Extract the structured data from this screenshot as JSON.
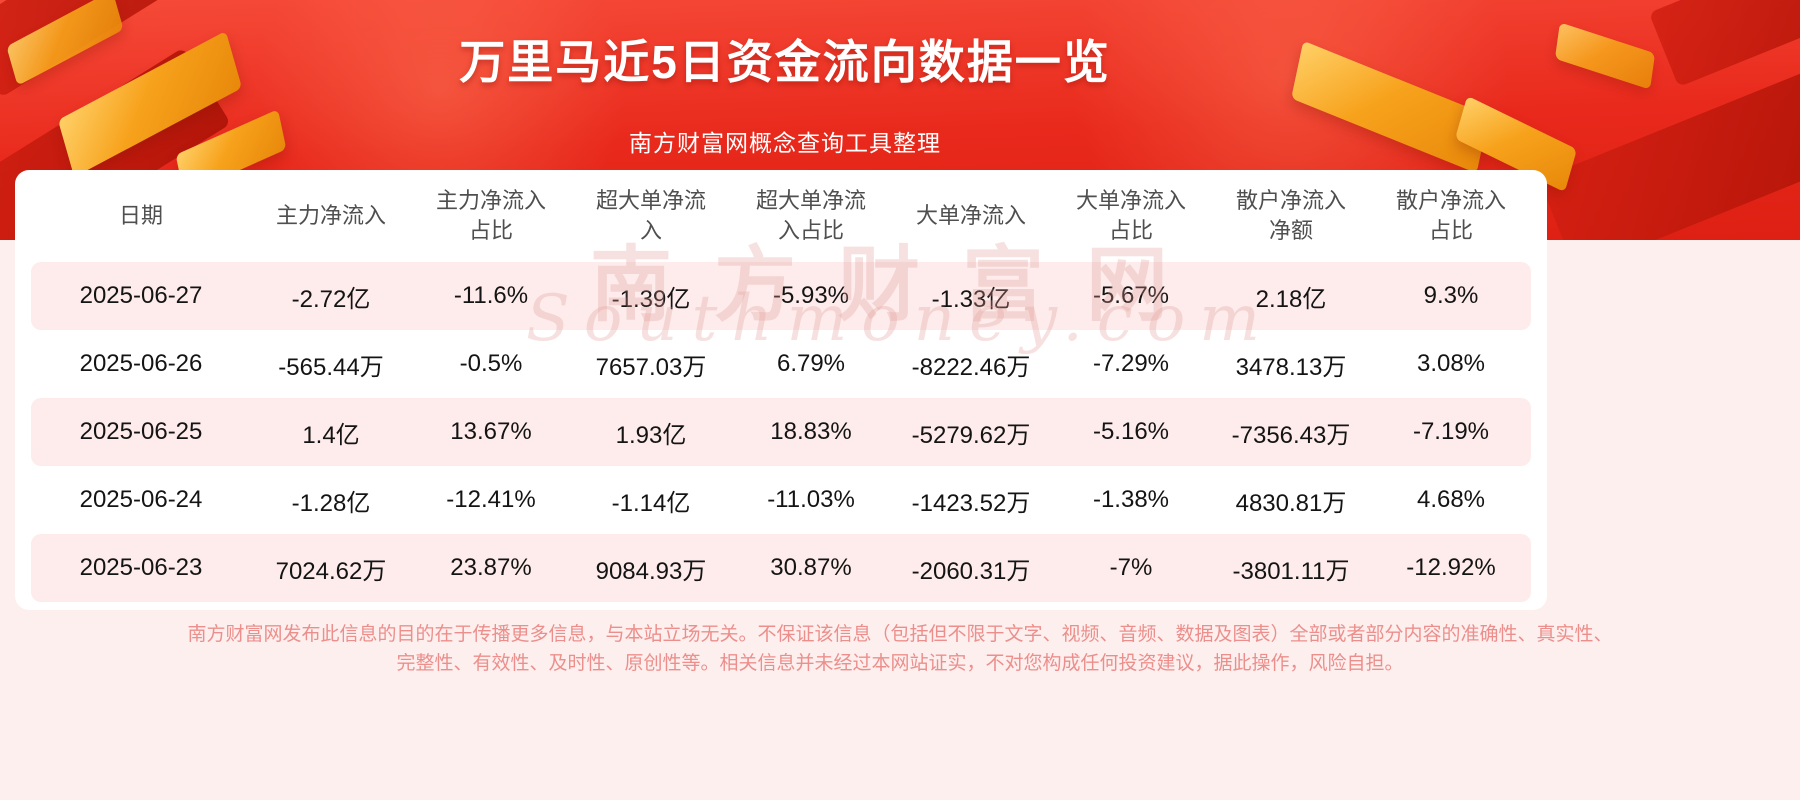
{
  "banner": {
    "title": "万里马近5日资金流向数据一览",
    "subtitle": "南方财富网概念查询工具整理"
  },
  "table": {
    "headers": [
      "日期",
      "主力净流入",
      "主力净流入\n占比",
      "超大单净流\n入",
      "超大单净流\n入占比",
      "大单净流入",
      "大单净流入\n占比",
      "散户净流入\n净额",
      "散户净流入\n占比"
    ],
    "rows": [
      [
        "2025-06-27",
        "-2.72亿",
        "-11.6%",
        "-1.39亿",
        "-5.93%",
        "-1.33亿",
        "-5.67%",
        "2.18亿",
        "9.3%"
      ],
      [
        "2025-06-26",
        "-565.44万",
        "-0.5%",
        "7657.03万",
        "6.79%",
        "-8222.46万",
        "-7.29%",
        "3478.13万",
        "3.08%"
      ],
      [
        "2025-06-25",
        "1.4亿",
        "13.67%",
        "1.93亿",
        "18.83%",
        "-5279.62万",
        "-5.16%",
        "-7356.43万",
        "-7.19%"
      ],
      [
        "2025-06-24",
        "-1.28亿",
        "-12.41%",
        "-1.14亿",
        "-11.03%",
        "-1423.52万",
        "-1.38%",
        "4830.81万",
        "4.68%"
      ],
      [
        "2025-06-23",
        "7024.62万",
        "23.87%",
        "9084.93万",
        "30.87%",
        "-2060.31万",
        "-7%",
        "-3801.11万",
        "-12.92%"
      ]
    ]
  },
  "watermark": {
    "line1": "南方财富网",
    "line2": "Southmoney.com"
  },
  "footer": {
    "line1": "南方财富网发布此信息的目的在于传播更多信息，与本站立场无关。不保证该信息（包括但不限于文字、视频、音频、数据及图表）全部或者部分内容的准确性、真实性、",
    "line2": "完整性、有效性、及时性、原创性等。相关信息并未经过本网站证实，不对您构成任何投资建议，据此操作，风险自担。"
  },
  "colors": {
    "banner_red": "#e8291c",
    "gold_accent": "#f7a21c",
    "row_stripe": "#fdeceb",
    "footer_text": "#ec8f8c",
    "page_background": "#fcefee"
  },
  "chart_data": {
    "type": "table",
    "title": "万里马近5日资金流向数据一览",
    "columns": [
      "日期",
      "主力净流入",
      "主力净流入占比",
      "超大单净流入",
      "超大单净流入占比",
      "大单净流入",
      "大单净流入占比",
      "散户净流入净额",
      "散户净流入占比"
    ],
    "rows": [
      [
        "2025-06-27",
        "-2.72亿",
        "-11.6%",
        "-1.39亿",
        "-5.93%",
        "-1.33亿",
        "-5.67%",
        "2.18亿",
        "9.3%"
      ],
      [
        "2025-06-26",
        "-565.44万",
        "-0.5%",
        "7657.03万",
        "6.79%",
        "-8222.46万",
        "-7.29%",
        "3478.13万",
        "3.08%"
      ],
      [
        "2025-06-25",
        "1.4亿",
        "13.67%",
        "1.93亿",
        "18.83%",
        "-5279.62万",
        "-5.16%",
        "-7356.43万",
        "-7.19%"
      ],
      [
        "2025-06-24",
        "-1.28亿",
        "-12.41%",
        "-1.14亿",
        "-11.03%",
        "-1423.52万",
        "-1.38%",
        "4830.81万",
        "4.68%"
      ],
      [
        "2025-06-23",
        "7024.62万",
        "23.87%",
        "9084.93万",
        "30.87%",
        "-2060.31万",
        "-7%",
        "-3801.11万",
        "-12.92%"
      ]
    ]
  }
}
